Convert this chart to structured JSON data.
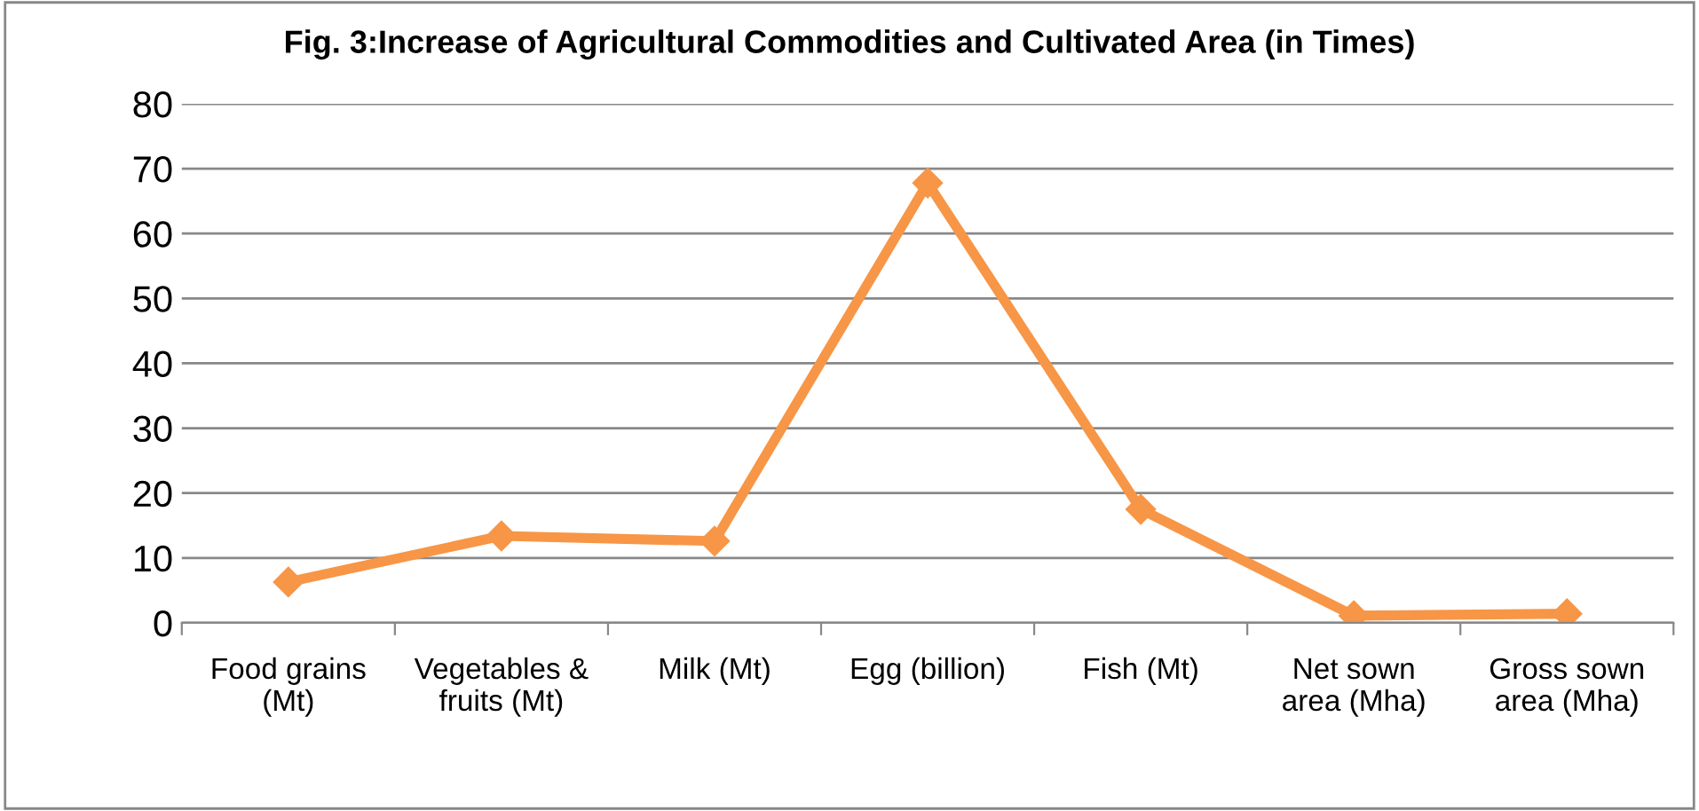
{
  "chart_data": {
    "type": "line",
    "title": "Fig. 3:Increase of Agricultural Commodities and Cultivated Area (in Times)",
    "categories": [
      "Food grains\n(Mt)",
      "Vegetables &\nfruits (Mt)",
      "Milk (Mt)",
      "Egg (billion)",
      "Fish (Mt)",
      "Net sown\narea (Mha)",
      "Gross sown\narea (Mha)"
    ],
    "series": [
      {
        "color": "#f79646",
        "values": [
          6.3,
          13.4,
          12.6,
          67.8,
          17.5,
          1.1,
          1.4
        ]
      }
    ],
    "ylim": [
      0,
      80
    ],
    "yticks": [
      0,
      10,
      20,
      30,
      40,
      50,
      60,
      70,
      80
    ],
    "grid": "y",
    "legend": false,
    "marker": "diamond",
    "line_style": "solid"
  }
}
